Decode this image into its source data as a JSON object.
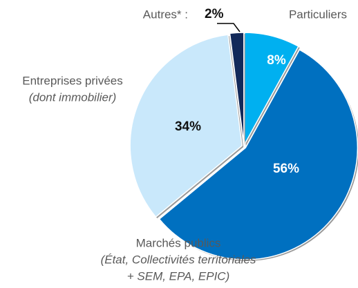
{
  "chart_data": {
    "type": "pie",
    "categories": [
      "Particuliers",
      "Marchés publics",
      "Entreprises privées",
      "Autres* :"
    ],
    "category_details": [
      [],
      [
        "(État, Collectivités territoriales",
        "+ SEM, EPA, EPIC)"
      ],
      [
        "(dont immobilier)"
      ],
      []
    ],
    "values": [
      8,
      56,
      34,
      2
    ],
    "value_labels": [
      "8%",
      "56%",
      "34%",
      "2%"
    ],
    "colors": [
      "#00b0f0",
      "#0070c0",
      "#c9e8fb",
      "#12295a"
    ]
  }
}
